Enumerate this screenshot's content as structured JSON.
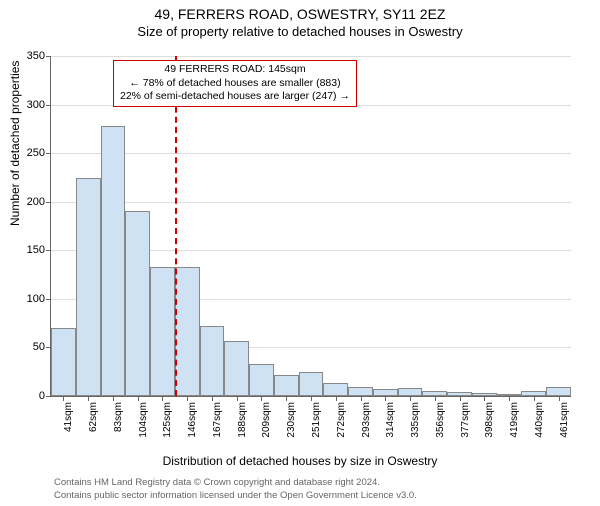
{
  "header": {
    "title": "49, FERRERS ROAD, OSWESTRY, SY11 2EZ",
    "subtitle": "Size of property relative to detached houses in Oswestry"
  },
  "chart": {
    "type": "histogram",
    "ylabel": "Number of detached properties",
    "xlabel": "Distribution of detached houses by size in Oswestry",
    "ylim": [
      0,
      350
    ],
    "ytick_step": 50,
    "yticks": [
      0,
      50,
      100,
      150,
      200,
      250,
      300,
      350
    ],
    "categories": [
      "41sqm",
      "62sqm",
      "83sqm",
      "104sqm",
      "125sqm",
      "146sqm",
      "167sqm",
      "188sqm",
      "209sqm",
      "230sqm",
      "251sqm",
      "272sqm",
      "293sqm",
      "314sqm",
      "335sqm",
      "356sqm",
      "377sqm",
      "398sqm",
      "419sqm",
      "440sqm",
      "461sqm"
    ],
    "values": [
      70,
      224,
      278,
      190,
      133,
      133,
      72,
      57,
      33,
      22,
      25,
      13,
      9,
      7,
      8,
      5,
      4,
      3,
      2,
      5,
      9
    ],
    "bar_fill": "#cfe2f3",
    "bar_border": "#888888",
    "grid_color": "#dddddd",
    "axis_color": "#666666",
    "background_color": "#ffffff",
    "label_fontsize": 12,
    "tick_fontsize": 11,
    "marker": {
      "position_index": 5,
      "color": "#cc0000",
      "annotation_lines": [
        "49 FERRERS ROAD: 145sqm",
        "← 78% of detached houses are smaller (883)",
        "22% of semi-detached houses are larger (247) →"
      ]
    }
  },
  "credits": {
    "line1": "Contains HM Land Registry data © Crown copyright and database right 2024.",
    "line2": "Contains public sector information licensed under the Open Government Licence v3.0."
  }
}
